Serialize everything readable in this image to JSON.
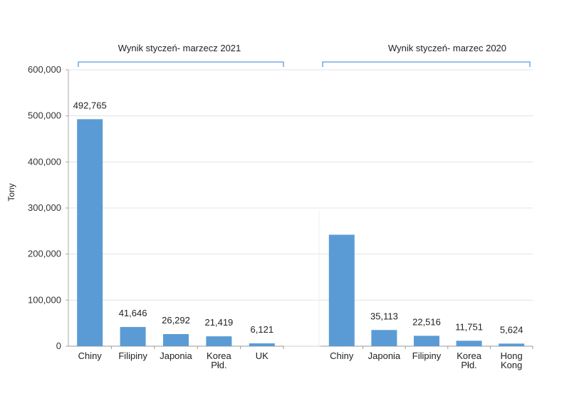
{
  "chart_data": {
    "type": "bar",
    "ylabel": "Tony",
    "ylim": [
      0,
      600000
    ],
    "yticks": [
      "0",
      "100,000",
      "200,000",
      "300,000",
      "400,000",
      "500,000",
      "600,000"
    ],
    "grid": true,
    "bar_color": "#5b9bd5",
    "groups": [
      {
        "title": "Wynik styczeń- marzecz 2021",
        "categories": [
          [
            "Chiny"
          ],
          [
            "Filipiny"
          ],
          [
            "Japonia"
          ],
          [
            "Korea",
            "Płd."
          ],
          [
            "UK"
          ]
        ],
        "values": [
          492765,
          41646,
          26292,
          21419,
          6121
        ],
        "labels": [
          "492,765",
          "41,646",
          "26,292",
          "21,419",
          "6,121"
        ]
      },
      {
        "title": "Wynik styczeń- marzec 2020",
        "categories": [
          [
            "Chiny"
          ],
          [
            "Japonia"
          ],
          [
            "Filipiny"
          ],
          [
            "Korea",
            "Płd."
          ],
          [
            "Hong",
            "Kong"
          ]
        ],
        "values": [
          242000,
          35113,
          22516,
          11751,
          5624
        ],
        "labels": [
          "",
          "35,113",
          "22,516",
          "11,751",
          "5,624"
        ]
      }
    ]
  }
}
